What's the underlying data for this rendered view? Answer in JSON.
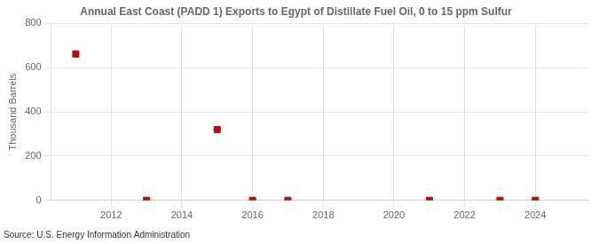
{
  "chart_data": {
    "type": "scatter",
    "title": "Annual East Coast (PADD 1) Exports to Egypt of Distillate Fuel Oil, 0 to 15 ppm Sulfur",
    "ylabel": "Thousand Barrels",
    "annotation": "Source: U.S. Energy Information Administration",
    "x": [
      2011,
      2013,
      2015,
      2016,
      2017,
      2021,
      2023,
      2024
    ],
    "values": [
      662,
      0,
      320,
      0,
      0,
      0,
      0,
      0
    ],
    "color": "#aa1111",
    "marker": "square",
    "xlim": [
      2010.3,
      2025.5
    ],
    "ylim": [
      0,
      800
    ],
    "xticks": [
      2012,
      2014,
      2016,
      2018,
      2020,
      2022,
      2024
    ],
    "yticks": [
      0,
      200,
      400,
      600,
      800
    ],
    "grid": true
  }
}
